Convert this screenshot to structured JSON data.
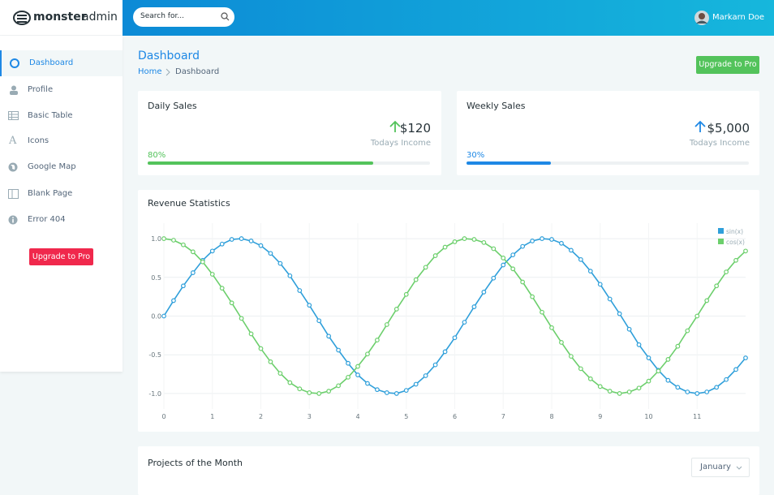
{
  "logo": {
    "bold": "monster",
    "light": "admin"
  },
  "search_placeholder": "Search for...",
  "user_name": "Markarn Doe",
  "nav": [
    "Dashboard",
    "Profile",
    "Basic Table",
    "Icons",
    "Google Map",
    "Blank Page",
    "Error 404"
  ],
  "sidebar_button": "Upgrade to Pro",
  "page": {
    "title": "Dashboard",
    "breadcrumb": [
      "Home",
      "Dashboard"
    ],
    "button": "Upgrade to Pro"
  },
  "cards": [
    {
      "title": "Daily Sales",
      "amount": "$120",
      "caption": "Todays Income",
      "progress": {
        "value": 80,
        "label": "80%"
      },
      "color": "#53c35b"
    },
    {
      "title": "Weekly Sales",
      "amount": "$5,000",
      "caption": "Todays Income",
      "progress": {
        "value": 30,
        "label": "30%"
      },
      "color": "#1e88e5"
    }
  ],
  "chart_data": {
    "type": "line",
    "title": "Revenue Statistics",
    "x": [
      0,
      0.2,
      0.4,
      0.6,
      0.8,
      1,
      1.2,
      1.4,
      1.6,
      1.8,
      2,
      2.2,
      2.4,
      2.6,
      2.8,
      3,
      3.2,
      3.4,
      3.6,
      3.8,
      4,
      4.2,
      4.4,
      4.6,
      4.8,
      5,
      5.2,
      5.4,
      5.6,
      5.8,
      6,
      6.2,
      6.4,
      6.6,
      6.8,
      7,
      7.2,
      7.4,
      7.6,
      7.8,
      8,
      8.2,
      8.4,
      8.6,
      8.8,
      9,
      9.2,
      9.4,
      9.6,
      9.8,
      10,
      10.2,
      10.4,
      10.6,
      10.8,
      11,
      11.2,
      11.4,
      11.6,
      11.8,
      12
    ],
    "series": [
      {
        "name": "sin(x)",
        "color": "#2f9fda",
        "values": [
          0,
          0.2,
          0.39,
          0.56,
          0.72,
          0.84,
          0.93,
          0.99,
          1,
          0.97,
          0.91,
          0.81,
          0.68,
          0.52,
          0.33,
          0.14,
          -0.06,
          -0.26,
          -0.44,
          -0.61,
          -0.76,
          -0.87,
          -0.95,
          -0.99,
          -1,
          -0.96,
          -0.88,
          -0.77,
          -0.63,
          -0.46,
          -0.28,
          -0.08,
          0.12,
          0.31,
          0.49,
          0.66,
          0.79,
          0.9,
          0.97,
          1,
          0.99,
          0.94,
          0.85,
          0.73,
          0.58,
          0.41,
          0.22,
          0.03,
          -0.17,
          -0.37,
          -0.54,
          -0.7,
          -0.83,
          -0.92,
          -0.98,
          -1,
          -0.98,
          -0.92,
          -0.82,
          -0.69,
          -0.54
        ]
      },
      {
        "name": "cos(x)",
        "color": "#6ccf6c",
        "values": [
          1,
          0.98,
          0.92,
          0.83,
          0.7,
          0.54,
          0.36,
          0.17,
          -0.03,
          -0.23,
          -0.42,
          -0.59,
          -0.74,
          -0.86,
          -0.94,
          -0.99,
          -1,
          -0.97,
          -0.9,
          -0.79,
          -0.65,
          -0.49,
          -0.31,
          -0.11,
          0.09,
          0.28,
          0.47,
          0.63,
          0.78,
          0.89,
          0.96,
          1,
          0.99,
          0.95,
          0.87,
          0.75,
          0.61,
          0.44,
          0.25,
          0.05,
          -0.15,
          -0.34,
          -0.52,
          -0.68,
          -0.81,
          -0.91,
          -0.97,
          -1,
          -0.98,
          -0.93,
          -0.84,
          -0.71,
          -0.56,
          -0.39,
          -0.19,
          0,
          0.2,
          0.39,
          0.57,
          0.72,
          0.84
        ]
      }
    ],
    "xlim": [
      0,
      12
    ],
    "xticks": [
      0,
      1,
      2,
      3,
      4,
      5,
      6,
      7,
      8,
      9,
      10,
      11
    ],
    "ylim": [
      -1.2,
      1.2
    ],
    "yticks": [
      {
        "value": -1,
        "label": "-1.0"
      },
      -0.5,
      {
        "value": 0,
        "label": "0.0"
      },
      0.5,
      {
        "value": 1,
        "label": "1.0"
      }
    ],
    "grid": true,
    "legend": "top-right"
  },
  "projects": {
    "title": "Projects of the Month",
    "select": "January"
  }
}
